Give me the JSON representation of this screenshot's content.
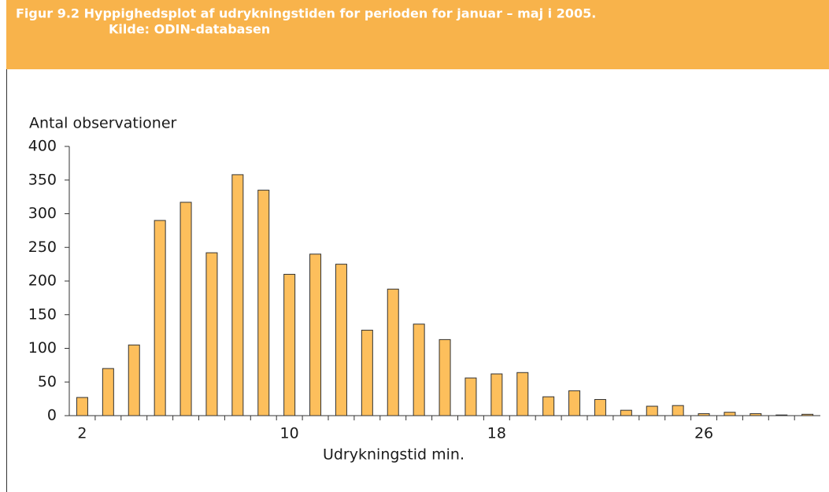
{
  "chart_data": {
    "type": "bar",
    "title": "Figur 9.2 Hyppighedsplot af udrykningstiden for perioden for januar – maj i 2005.",
    "source": "Kilde: ODIN-databasen",
    "ylabel": "Antal observationer",
    "xlabel": "Udrykningstid min.",
    "categories": [
      "2",
      null,
      null,
      null,
      null,
      null,
      null,
      null,
      "10",
      null,
      null,
      null,
      null,
      null,
      null,
      null,
      "18",
      null,
      null,
      null,
      null,
      null,
      null,
      null,
      "26",
      null,
      null,
      null,
      null
    ],
    "values": [
      27,
      70,
      105,
      290,
      317,
      242,
      358,
      335,
      210,
      240,
      225,
      127,
      188,
      136,
      113,
      56,
      62,
      64,
      28,
      37,
      24,
      8,
      14,
      15,
      3,
      5,
      3,
      1,
      2
    ],
    "color": "#fdbf5c",
    "ylim": [
      0,
      400
    ],
    "yticks": [
      0,
      50,
      100,
      150,
      200,
      250,
      300,
      350,
      400
    ],
    "grid": false
  }
}
